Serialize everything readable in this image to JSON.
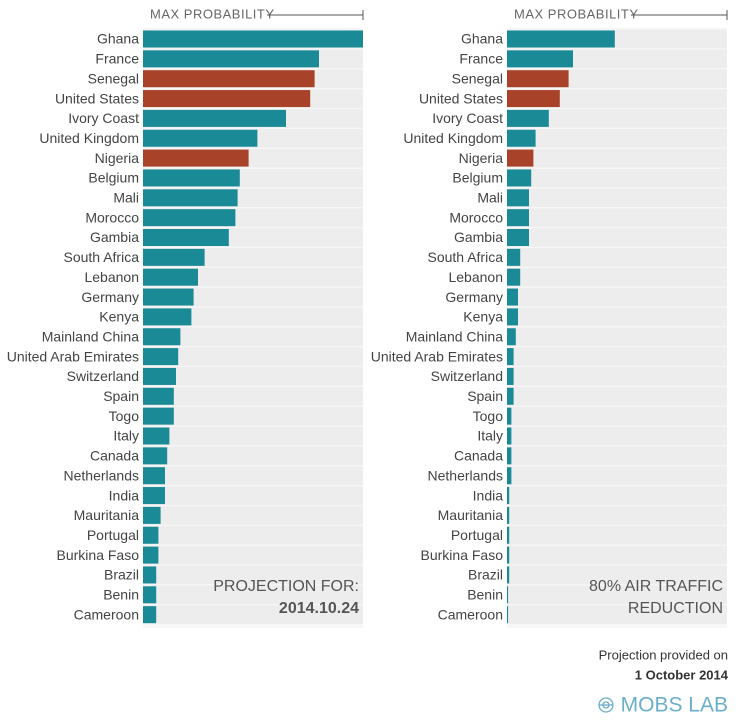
{
  "chart_data": [
    {
      "type": "bar",
      "orientation": "horizontal",
      "xlabel": "MAX PROBABILITY",
      "categories": [
        "Ghana",
        "France",
        "Senegal",
        "United States",
        "Ivory Coast",
        "United Kingdom",
        "Nigeria",
        "Belgium",
        "Mali",
        "Morocco",
        "Gambia",
        "South Africa",
        "Lebanon",
        "Germany",
        "Kenya",
        "Mainland China",
        "United Arab Emirates",
        "Switzerland",
        "Spain",
        "Togo",
        "Italy",
        "Canada",
        "Netherlands",
        "India",
        "Mauritania",
        "Portugal",
        "Burkina Faso",
        "Brazil",
        "Benin",
        "Cameroon"
      ],
      "series": [
        {
          "values": [
            1.0,
            0.8,
            0.78,
            0.76,
            0.65,
            0.52,
            0.48,
            0.44,
            0.43,
            0.42,
            0.39,
            0.28,
            0.25,
            0.23,
            0.22,
            0.17,
            0.16,
            0.15,
            0.14,
            0.14,
            0.12,
            0.11,
            0.1,
            0.1,
            0.08,
            0.07,
            0.07,
            0.06,
            0.06,
            0.06
          ],
          "colors": [
            "#1a8a96",
            "#1a8a96",
            "#a8432a",
            "#a8432a",
            "#1a8a96",
            "#1a8a96",
            "#a8432a",
            "#1a8a96",
            "#1a8a96",
            "#1a8a96",
            "#1a8a96",
            "#1a8a96",
            "#1a8a96",
            "#1a8a96",
            "#1a8a96",
            "#1a8a96",
            "#1a8a96",
            "#1a8a96",
            "#1a8a96",
            "#1a8a96",
            "#1a8a96",
            "#1a8a96",
            "#1a8a96",
            "#1a8a96",
            "#1a8a96",
            "#1a8a96",
            "#1a8a96",
            "#1a8a96",
            "#1a8a96",
            "#1a8a96"
          ]
        }
      ],
      "xlim": [
        0,
        1
      ],
      "annotation": [
        "PROJECTION FOR:",
        "2014.10.24"
      ]
    },
    {
      "type": "bar",
      "orientation": "horizontal",
      "xlabel": "MAX PROBABILITY",
      "categories": [
        "Ghana",
        "France",
        "Senegal",
        "United States",
        "Ivory Coast",
        "United Kingdom",
        "Nigeria",
        "Belgium",
        "Mali",
        "Morocco",
        "Gambia",
        "South Africa",
        "Lebanon",
        "Germany",
        "Kenya",
        "Mainland China",
        "United Arab Emirates",
        "Switzerland",
        "Spain",
        "Togo",
        "Italy",
        "Canada",
        "Netherlands",
        "India",
        "Mauritania",
        "Portugal",
        "Burkina Faso",
        "Brazil",
        "Benin",
        "Cameroon"
      ],
      "series": [
        {
          "values": [
            0.49,
            0.3,
            0.28,
            0.24,
            0.19,
            0.13,
            0.12,
            0.11,
            0.1,
            0.1,
            0.1,
            0.06,
            0.06,
            0.05,
            0.05,
            0.04,
            0.03,
            0.03,
            0.03,
            0.02,
            0.02,
            0.02,
            0.02,
            0.01,
            0.01,
            0.01,
            0.01,
            0.01,
            0.005,
            0.005
          ],
          "colors": [
            "#1a8a96",
            "#1a8a96",
            "#a8432a",
            "#a8432a",
            "#1a8a96",
            "#1a8a96",
            "#a8432a",
            "#1a8a96",
            "#1a8a96",
            "#1a8a96",
            "#1a8a96",
            "#1a8a96",
            "#1a8a96",
            "#1a8a96",
            "#1a8a96",
            "#1a8a96",
            "#1a8a96",
            "#1a8a96",
            "#1a8a96",
            "#1a8a96",
            "#1a8a96",
            "#1a8a96",
            "#1a8a96",
            "#1a8a96",
            "#1a8a96",
            "#1a8a96",
            "#1a8a96",
            "#1a8a96",
            "#1a8a96",
            "#1a8a96"
          ]
        }
      ],
      "xlim": [
        0,
        1
      ],
      "annotation": [
        "80% AIR TRAFFIC",
        "REDUCTION"
      ]
    }
  ],
  "footer": {
    "note": "Projection provided on",
    "date": "1 October 2014",
    "brand": "MOBS LAB"
  }
}
